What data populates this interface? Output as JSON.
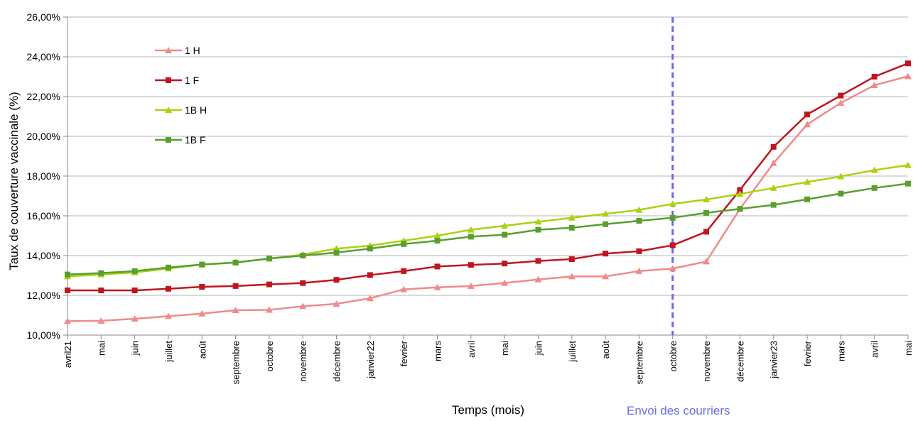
{
  "chart_data": {
    "type": "line",
    "xlabel": "Temps (mois)",
    "ylabel": "Taux de couverture vaccinale (%)",
    "ylim": [
      10,
      26
    ],
    "ytick_step": 2,
    "ytick_labels": [
      "10,00%",
      "12,00%",
      "14,00%",
      "16,00%",
      "18,00%",
      "20,00%",
      "22,00%",
      "24,00%",
      "26,00%"
    ],
    "grid": "horizontal",
    "legend_position": "top-left",
    "categories": [
      "avril21",
      "mai",
      "juin",
      "juillet",
      "août",
      "septembre",
      "octobre",
      "novembre",
      "décembre",
      "janvier22",
      "fevrier",
      "mars",
      "avril",
      "mai",
      "juin",
      "juillet",
      "août",
      "septembre",
      "octobre",
      "novembre",
      "décembre",
      "janvier23",
      "fevrier",
      "mars",
      "avril",
      "mai"
    ],
    "series": [
      {
        "name": "1 H",
        "color": "#f08a8a",
        "marker": "triangle",
        "values": [
          10.7,
          10.72,
          10.82,
          10.95,
          11.08,
          11.25,
          11.27,
          11.45,
          11.57,
          11.85,
          12.3,
          12.4,
          12.47,
          12.62,
          12.8,
          12.95,
          12.95,
          13.22,
          13.35,
          13.7,
          16.35,
          18.65,
          20.6,
          21.68,
          22.57,
          23.02
        ]
      },
      {
        "name": "1 F",
        "color": "#c0151f",
        "marker": "square",
        "values": [
          12.25,
          12.25,
          12.25,
          12.33,
          12.43,
          12.47,
          12.55,
          12.62,
          12.78,
          13.02,
          13.22,
          13.45,
          13.53,
          13.6,
          13.73,
          13.82,
          14.1,
          14.22,
          14.52,
          15.2,
          17.3,
          19.47,
          21.1,
          22.05,
          23.0,
          23.67
        ]
      },
      {
        "name": "1B H",
        "color": "#a8d20f",
        "marker": "triangle",
        "values": [
          12.95,
          13.05,
          13.15,
          13.35,
          13.55,
          13.65,
          13.85,
          14.05,
          14.35,
          14.5,
          14.75,
          15.0,
          15.3,
          15.5,
          15.7,
          15.9,
          16.1,
          16.3,
          16.6,
          16.82,
          17.1,
          17.4,
          17.7,
          17.98,
          18.3,
          18.55
        ]
      },
      {
        "name": "1B F",
        "color": "#5a9e2e",
        "marker": "square",
        "values": [
          13.05,
          13.12,
          13.22,
          13.4,
          13.55,
          13.65,
          13.85,
          14.0,
          14.15,
          14.35,
          14.58,
          14.75,
          14.95,
          15.05,
          15.3,
          15.4,
          15.58,
          15.75,
          15.9,
          16.15,
          16.35,
          16.55,
          16.83,
          17.12,
          17.4,
          17.62
        ]
      }
    ],
    "annotation": {
      "label": "Envoi des courriers",
      "category_index": 18,
      "color": "#6b6be6",
      "style": "dashed vertical line"
    }
  }
}
